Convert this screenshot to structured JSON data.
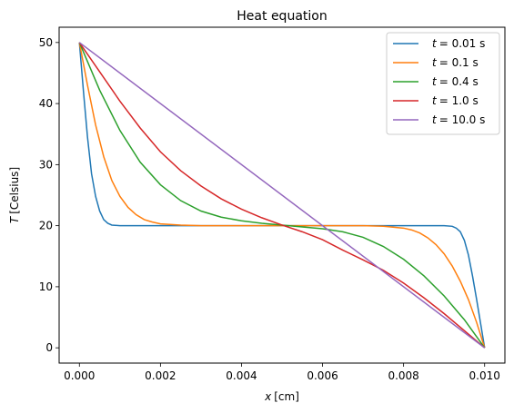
{
  "chart_data": {
    "type": "line",
    "title": "Heat equation",
    "xlabel": {
      "var": "x",
      "unit": "[cm]"
    },
    "ylabel": {
      "var": "T",
      "unit": "[Celsius]"
    },
    "xlim": [
      -0.0005,
      0.0105
    ],
    "ylim": [
      -2.5,
      52.5
    ],
    "xticks": [
      0.0,
      0.002,
      0.004,
      0.006,
      0.008,
      0.01
    ],
    "xtick_labels": [
      "0.000",
      "0.002",
      "0.004",
      "0.006",
      "0.008",
      "0.010"
    ],
    "yticks": [
      0,
      10,
      20,
      30,
      40,
      50
    ],
    "ytick_labels": [
      "0",
      "10",
      "20",
      "30",
      "40",
      "50"
    ],
    "grid": false,
    "legend_position": "top-right",
    "series": [
      {
        "name": "t = 0.01 s",
        "legend_var": "t",
        "legend_value": "= 0.01 s",
        "color": "#1f77b4",
        "x": [
          0,
          0.0001,
          0.0002,
          0.0003,
          0.0004,
          0.0005,
          0.0006,
          0.0007,
          0.0008,
          0.001,
          0.002,
          0.004,
          0.006,
          0.008,
          0.009,
          0.0092,
          0.0093,
          0.0094,
          0.0095,
          0.0096,
          0.0097,
          0.0098,
          0.0099,
          0.01
        ],
        "y": [
          50,
          42,
          34.5,
          28.5,
          24.8,
          22.4,
          21.0,
          20.4,
          20.1,
          20,
          20,
          20,
          20,
          20,
          20,
          19.9,
          19.6,
          19.0,
          17.6,
          15.2,
          11.8,
          8.0,
          4.0,
          0
        ]
      },
      {
        "name": "t = 0.1 s",
        "legend_var": "t",
        "legend_value": "= 0.1 s",
        "color": "#ff7f0e",
        "x": [
          0,
          0.0002,
          0.0004,
          0.0006,
          0.0008,
          0.001,
          0.0012,
          0.0014,
          0.0016,
          0.0018,
          0.002,
          0.0025,
          0.003,
          0.004,
          0.006,
          0.007,
          0.0075,
          0.008,
          0.0082,
          0.0084,
          0.0086,
          0.0088,
          0.009,
          0.0092,
          0.0094,
          0.0096,
          0.0098,
          0.01
        ],
        "y": [
          50,
          43,
          36.5,
          31.3,
          27.4,
          24.8,
          23.0,
          21.8,
          21.0,
          20.6,
          20.3,
          20.1,
          20,
          20,
          20,
          20,
          19.9,
          19.6,
          19.3,
          18.8,
          18.0,
          16.9,
          15.4,
          13.4,
          10.9,
          7.9,
          4.2,
          0
        ]
      },
      {
        "name": "t = 0.4 s",
        "legend_var": "t",
        "legend_value": "= 0.4 s",
        "color": "#2ca02c",
        "x": [
          0,
          0.0005,
          0.001,
          0.0015,
          0.002,
          0.0025,
          0.003,
          0.0035,
          0.004,
          0.0045,
          0.005,
          0.0055,
          0.006,
          0.0065,
          0.007,
          0.0075,
          0.008,
          0.0085,
          0.009,
          0.0095,
          0.01
        ],
        "y": [
          50,
          42.2,
          35.6,
          30.4,
          26.7,
          24.1,
          22.4,
          21.4,
          20.8,
          20.4,
          20.1,
          19.8,
          19.5,
          19.0,
          18.1,
          16.6,
          14.5,
          11.8,
          8.5,
          4.6,
          0
        ]
      },
      {
        "name": "t = 1.0 s",
        "legend_var": "t",
        "legend_value": "= 1.0 s",
        "color": "#d62728",
        "x": [
          0,
          0.0005,
          0.001,
          0.0015,
          0.002,
          0.0025,
          0.003,
          0.0035,
          0.004,
          0.0045,
          0.005,
          0.0055,
          0.006,
          0.0065,
          0.007,
          0.0075,
          0.008,
          0.0085,
          0.009,
          0.0095,
          0.01
        ],
        "y": [
          50,
          45.2,
          40.4,
          36.0,
          32.1,
          29.0,
          26.5,
          24.4,
          22.7,
          21.3,
          20.1,
          19.0,
          17.7,
          16.0,
          14.4,
          12.7,
          10.6,
          8.2,
          5.6,
          2.8,
          0
        ]
      },
      {
        "name": "t = 10.0 s",
        "legend_var": "t",
        "legend_value": "= 10.0 s",
        "color": "#9467bd",
        "x": [
          0,
          0.01
        ],
        "y": [
          50,
          0
        ]
      }
    ]
  }
}
